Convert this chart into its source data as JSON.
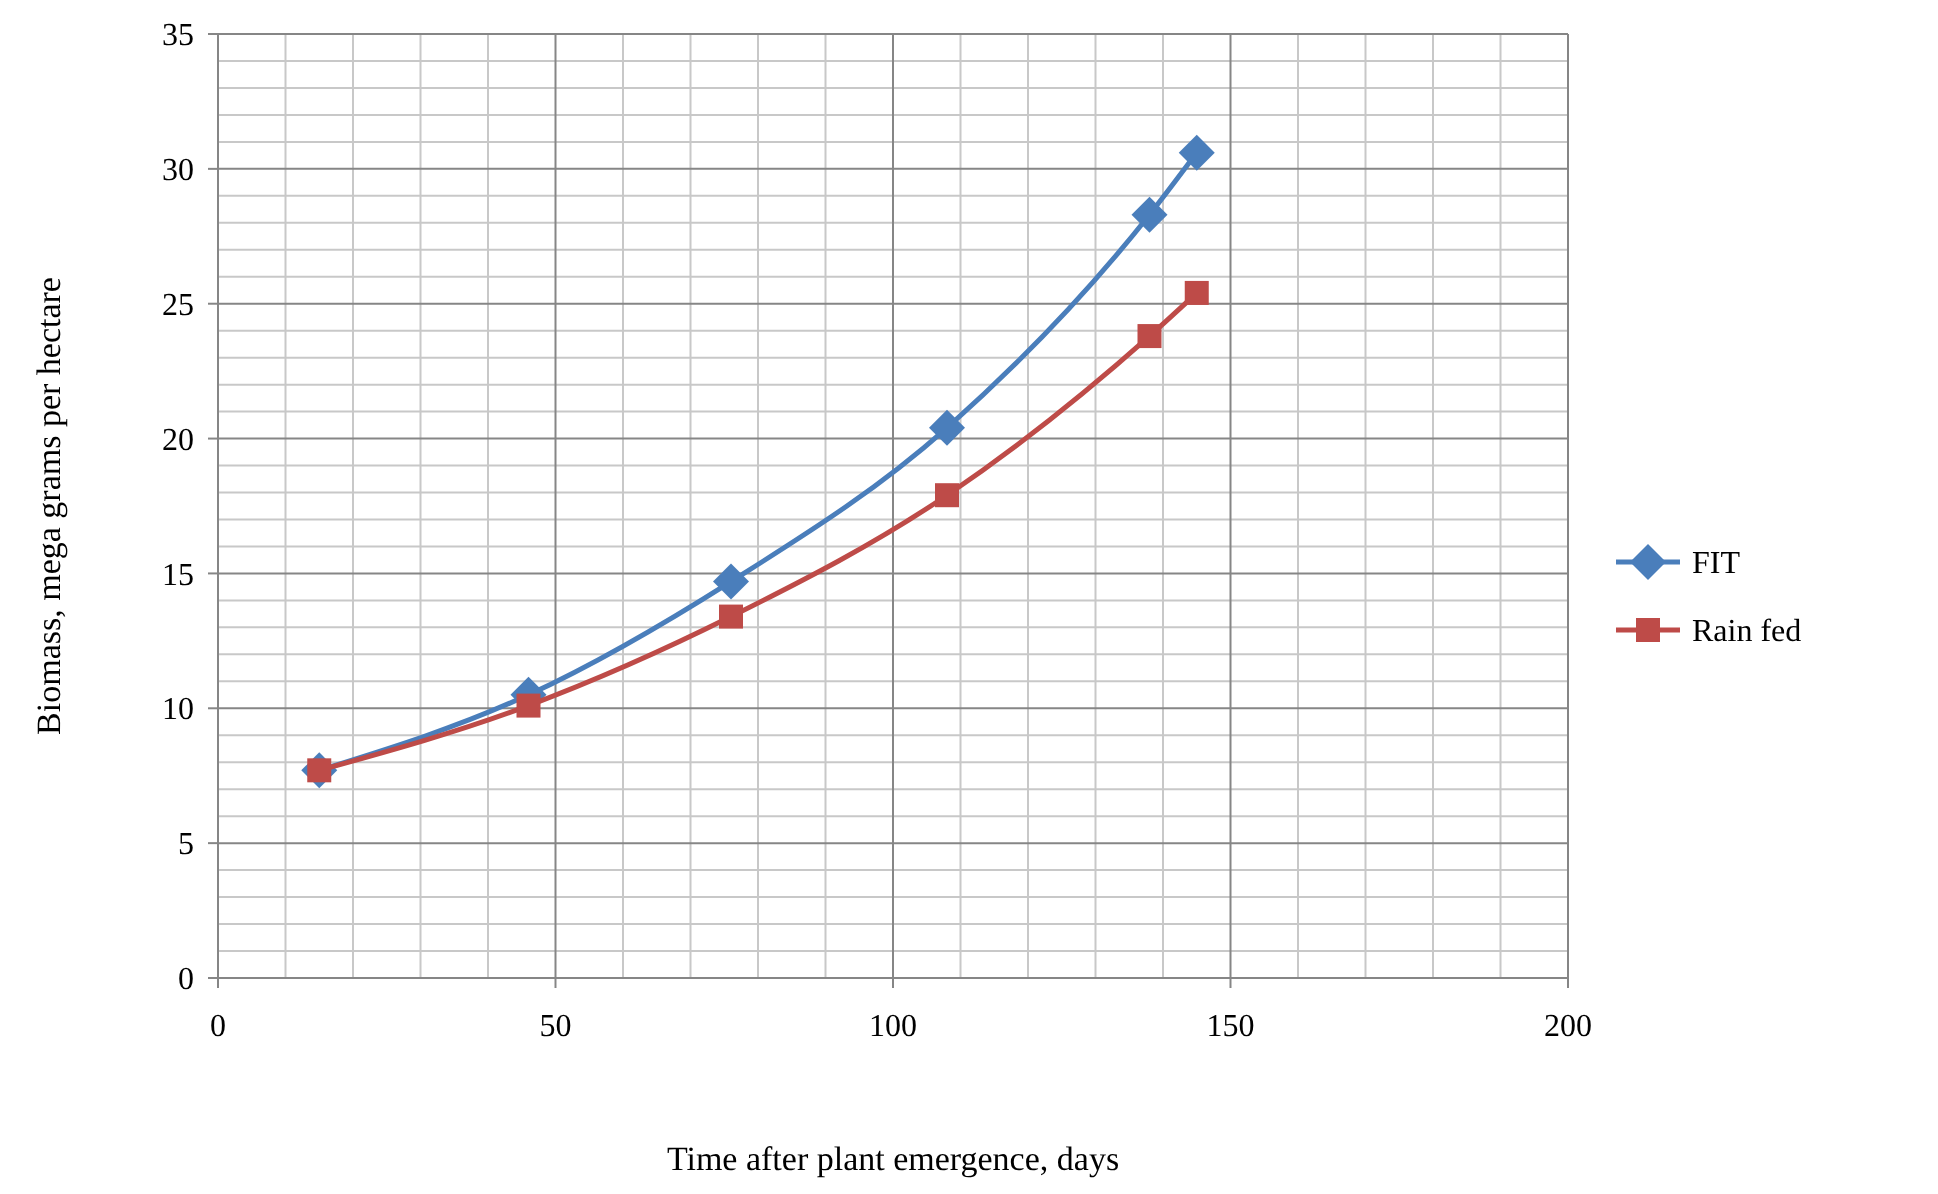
{
  "chart_data": {
    "type": "line",
    "xlabel": "Time after plant emergence, days",
    "ylabel": "Biomass, mega grams per hectare",
    "x": [
      15,
      46,
      76,
      108,
      138,
      145
    ],
    "series": [
      {
        "name": "FIT",
        "color": "#4a7ebb",
        "marker": "diamond",
        "values": [
          7.7,
          10.5,
          14.7,
          20.4,
          28.3,
          30.6
        ]
      },
      {
        "name": "Rain fed",
        "color": "#be4b48",
        "marker": "square",
        "values": [
          7.7,
          10.1,
          13.4,
          17.9,
          23.8,
          25.4
        ]
      }
    ],
    "xlim": [
      0,
      200
    ],
    "xticks": [
      0,
      50,
      100,
      150,
      200
    ],
    "ylim": [
      0,
      35
    ],
    "yticks": [
      0,
      5,
      10,
      15,
      20,
      25,
      30,
      35
    ],
    "grid": true,
    "legend": "right",
    "line_style": "solid"
  }
}
